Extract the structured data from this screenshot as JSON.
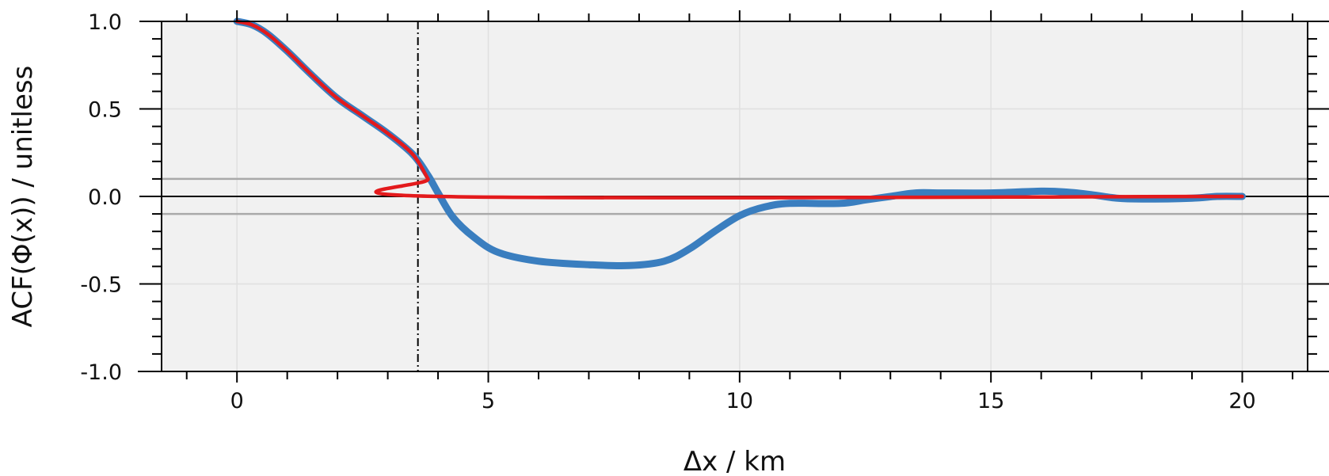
{
  "chart_data": {
    "type": "line",
    "xlabel": "Δx / km",
    "ylabel": "ACF(Φ(x))  / unitless",
    "xlim": [
      -1.5,
      21.3
    ],
    "ylim": [
      -1.0,
      1.0
    ],
    "x_ticks": [
      0,
      5,
      10,
      15,
      20
    ],
    "x_tick_labels": [
      "0",
      "5",
      "10",
      "15",
      "20"
    ],
    "y_ticks": [
      1.0,
      0.5,
      0.0,
      -0.5,
      -1.0
    ],
    "y_tick_labels": [
      "1.0",
      "0.5",
      "0.0",
      "-0.5",
      "-1.0"
    ],
    "grid": true,
    "background": "#f1f1f1",
    "reference_lines": {
      "horizontal": [
        0.1,
        -0.1
      ],
      "zero_line": 0.0,
      "vertical_dashdot": 3.6
    },
    "series": [
      {
        "color": "#3a7ebf",
        "points": [
          [
            0,
            1.0
          ],
          [
            0.3,
            0.98
          ],
          [
            0.6,
            0.93
          ],
          [
            1.0,
            0.83
          ],
          [
            1.5,
            0.69
          ],
          [
            2.0,
            0.56
          ],
          [
            2.5,
            0.46
          ],
          [
            3.0,
            0.36
          ],
          [
            3.5,
            0.24
          ],
          [
            3.8,
            0.12
          ],
          [
            4.0,
            0.02
          ],
          [
            4.3,
            -0.12
          ],
          [
            4.7,
            -0.23
          ],
          [
            5.2,
            -0.32
          ],
          [
            6.0,
            -0.37
          ],
          [
            7.0,
            -0.39
          ],
          [
            7.8,
            -0.395
          ],
          [
            8.5,
            -0.37
          ],
          [
            9.0,
            -0.3
          ],
          [
            9.5,
            -0.2
          ],
          [
            10.0,
            -0.11
          ],
          [
            10.5,
            -0.06
          ],
          [
            11.0,
            -0.04
          ],
          [
            12.0,
            -0.04
          ],
          [
            12.5,
            -0.02
          ],
          [
            13.0,
            0.0
          ],
          [
            13.5,
            0.02
          ],
          [
            14.0,
            0.02
          ],
          [
            15.0,
            0.02
          ],
          [
            16.0,
            0.03
          ],
          [
            16.5,
            0.025
          ],
          [
            17.0,
            0.01
          ],
          [
            17.5,
            -0.01
          ],
          [
            18.0,
            -0.015
          ],
          [
            19.0,
            -0.01
          ],
          [
            19.5,
            0.0
          ],
          [
            20.0,
            0.0
          ]
        ]
      },
      {
        "color": "#e31a1c",
        "points": [
          [
            0,
            1.0
          ],
          [
            0.3,
            0.98
          ],
          [
            0.6,
            0.93
          ],
          [
            1.0,
            0.83
          ],
          [
            1.5,
            0.69
          ],
          [
            2.0,
            0.56
          ],
          [
            2.5,
            0.46
          ],
          [
            3.0,
            0.36
          ],
          [
            3.5,
            0.24
          ],
          [
            3.8,
            0.1
          ],
          [
            4.0,
            0.0
          ],
          [
            20.0,
            0.0
          ]
        ]
      }
    ]
  }
}
